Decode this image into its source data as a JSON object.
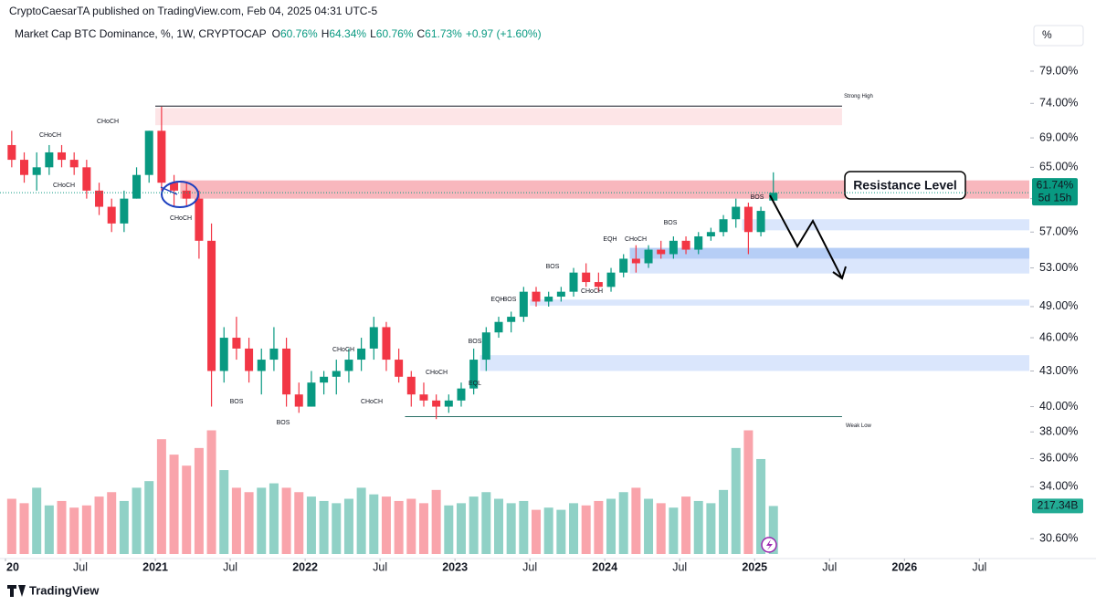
{
  "header": {
    "publisher": "CryptoCaesarTA published on TradingView.com, Feb 04, 2025 04:31 UTC-5",
    "footer": "TradingView",
    "scale_button": "%"
  },
  "chart_data": {
    "type": "candlestick",
    "title": "Market Cap BTC Dominance, %, 1W, CRYPTOCAP",
    "ohlc": [
      {
        "key": "O",
        "label": "60.76%"
      },
      {
        "key": "H",
        "label": "64.34%"
      },
      {
        "key": "L",
        "label": "60.76%"
      },
      {
        "key": "C",
        "label": "61.73%"
      }
    ],
    "change": "+0.97 (+1.60%)",
    "x": [
      "2020-01",
      "2020-02",
      "2020-03",
      "2020-04",
      "2020-05",
      "2020-06",
      "2020-07",
      "2020-08",
      "2020-09",
      "2020-10",
      "2020-11",
      "2020-12",
      "2021-01",
      "2021-02",
      "2021-03",
      "2021-04",
      "2021-05",
      "2021-06",
      "2021-07",
      "2021-08",
      "2021-09",
      "2021-10",
      "2021-11",
      "2021-12",
      "2022-01",
      "2022-02",
      "2022-03",
      "2022-04",
      "2022-05",
      "2022-06",
      "2022-07",
      "2022-08",
      "2022-09",
      "2022-10",
      "2022-11",
      "2022-12",
      "2023-01",
      "2023-02",
      "2023-03",
      "2023-04",
      "2023-05",
      "2023-06",
      "2023-07",
      "2023-08",
      "2023-09",
      "2023-10",
      "2023-11",
      "2023-12",
      "2024-01",
      "2024-02",
      "2024-03",
      "2024-04",
      "2024-05",
      "2024-06",
      "2024-07",
      "2024-08",
      "2024-09",
      "2024-10",
      "2024-11",
      "2024-12",
      "2025-01",
      "2025-02"
    ],
    "open": [
      68,
      66,
      64,
      65,
      67,
      66,
      65,
      62,
      60,
      58,
      61,
      64,
      70,
      63,
      62,
      61,
      56,
      43,
      46,
      45,
      43,
      44,
      45,
      41,
      40,
      42,
      42.5,
      43,
      44,
      45,
      47,
      44,
      42.5,
      41,
      40.5,
      40,
      40.5,
      41.5,
      44,
      46.5,
      47.5,
      48,
      50.5,
      49.5,
      50,
      50.5,
      52.5,
      51.5,
      51,
      52.5,
      54,
      53.5,
      55,
      54.5,
      56,
      55,
      56.5,
      57,
      58.5,
      60,
      57,
      60.76
    ],
    "high": [
      70,
      67,
      67,
      68,
      68,
      67,
      66,
      63,
      61,
      62,
      65,
      70,
      73.5,
      64,
      63,
      62,
      58,
      47,
      48,
      46,
      45,
      47,
      46,
      42,
      43,
      43,
      44,
      45,
      46,
      48,
      47.5,
      45,
      43,
      42,
      41,
      41,
      42,
      45,
      47,
      48,
      48.5,
      51,
      51,
      50.5,
      51,
      53,
      53.5,
      52.5,
      53,
      54.5,
      55.5,
      55.5,
      56,
      56.5,
      56.5,
      57,
      57.5,
      59,
      61,
      60.5,
      60,
      64.34
    ],
    "low": [
      65,
      63,
      62,
      64,
      65,
      64,
      61,
      59,
      57,
      57,
      61,
      63,
      62,
      60,
      60,
      54,
      40,
      42,
      44,
      42,
      41,
      43,
      40,
      39.5,
      40,
      41,
      41,
      42,
      43,
      44,
      43,
      42,
      40,
      40,
      39,
      39.5,
      40,
      41,
      43,
      46,
      46.5,
      47.5,
      49,
      49,
      49.5,
      50,
      51,
      50.5,
      50.5,
      52,
      52.5,
      53,
      54,
      54,
      54.5,
      54.5,
      56,
      56.5,
      57.5,
      54.5,
      56.5,
      60.76
    ],
    "close": [
      66,
      64,
      65,
      67,
      66,
      65,
      62,
      60,
      58,
      61,
      64,
      70,
      63,
      62,
      61,
      56,
      43,
      46,
      45,
      43,
      44,
      45,
      41,
      40,
      42,
      42.5,
      43,
      44,
      45,
      47,
      44,
      42.5,
      41,
      40.5,
      40,
      40.5,
      41.5,
      44,
      46.5,
      47.5,
      48,
      50.5,
      49.5,
      50,
      50.5,
      52.5,
      51.5,
      51,
      52.5,
      54,
      53.5,
      55,
      54.5,
      56,
      55,
      56.5,
      57,
      58.5,
      60,
      57,
      59.5,
      61.73
    ],
    "volume": [
      250,
      230,
      300,
      220,
      240,
      210,
      220,
      260,
      280,
      240,
      300,
      330,
      520,
      450,
      400,
      480,
      560,
      380,
      300,
      280,
      300,
      320,
      300,
      280,
      260,
      240,
      230,
      250,
      300,
      270,
      260,
      240,
      250,
      230,
      290,
      220,
      230,
      260,
      280,
      250,
      230,
      240,
      200,
      210,
      200,
      230,
      220,
      240,
      250,
      280,
      300,
      250,
      230,
      210,
      260,
      240,
      230,
      290,
      480,
      560,
      430,
      217.34
    ],
    "volume_label": "217.34B",
    "volume_lim": [
      0,
      620
    ],
    "last_price": 61.74,
    "last_price_label": "61.74%",
    "countdown": "5d 15h",
    "up_color": "#089981",
    "down_color": "#f23645",
    "log_scale": true,
    "ylim": [
      29.5,
      83.2
    ],
    "yticks": [
      {
        "value": 79,
        "label": "79.00%"
      },
      {
        "value": 74,
        "label": "74.00%"
      },
      {
        "value": 69,
        "label": "69.00%"
      },
      {
        "value": 65,
        "label": "65.00%"
      },
      {
        "value": 61,
        "label": "61.00%"
      },
      {
        "value": 57,
        "label": "57.00%"
      },
      {
        "value": 53,
        "label": "53.00%"
      },
      {
        "value": 49,
        "label": "49.00%"
      },
      {
        "value": 46,
        "label": "46.00%"
      },
      {
        "value": 43,
        "label": "43.00%"
      },
      {
        "value": 40,
        "label": "40.00%"
      },
      {
        "value": 38,
        "label": "38.00%"
      },
      {
        "value": 36,
        "label": "36.00%"
      },
      {
        "value": 34,
        "label": "34.00%"
      },
      {
        "value": 30.6,
        "label": "30.60%"
      }
    ],
    "xlim": [
      "2020-01",
      "2026-11"
    ],
    "xticks": [
      {
        "value": "2020-01",
        "label": "20"
      },
      {
        "value": "2020-07",
        "label": "Jul"
      },
      {
        "value": "2021-01",
        "label": "2021"
      },
      {
        "value": "2021-07",
        "label": "Jul"
      },
      {
        "value": "2022-01",
        "label": "2022"
      },
      {
        "value": "2022-07",
        "label": "Jul"
      },
      {
        "value": "2023-01",
        "label": "2023"
      },
      {
        "value": "2023-07",
        "label": "Jul"
      },
      {
        "value": "2024-01",
        "label": "2024"
      },
      {
        "value": "2024-07",
        "label": "Jul"
      },
      {
        "value": "2025-01",
        "label": "2025"
      },
      {
        "value": "2025-07",
        "label": "Jul"
      },
      {
        "value": "2026-01",
        "label": "2026"
      },
      {
        "value": "2026-07",
        "label": "Jul"
      }
    ],
    "zones": [
      {
        "low": 70.8,
        "high": 73.3,
        "start": "2021-01",
        "end": "2025-08",
        "color": "#fde0e3"
      },
      {
        "low": 61.0,
        "high": 63.3,
        "start": "2021-03",
        "end": "2026-11",
        "color": "#f7aab1"
      },
      {
        "low": 57.2,
        "high": 58.5,
        "start": "2024-12",
        "end": "2026-11",
        "color": "#d3e2fb"
      },
      {
        "low": 54.0,
        "high": 55.2,
        "start": "2024-03",
        "end": "2026-11",
        "color": "#a9c6f5"
      },
      {
        "low": 52.4,
        "high": 54.0,
        "start": "2024-03",
        "end": "2026-11",
        "color": "#d3e2fb"
      },
      {
        "low": 49.1,
        "high": 49.7,
        "start": "2023-07",
        "end": "2026-11",
        "color": "#d3e2fb"
      },
      {
        "low": 43.0,
        "high": 44.4,
        "start": "2023-03",
        "end": "2026-11",
        "color": "#d3e2fb"
      }
    ],
    "strong_high": {
      "label": "Strong High",
      "value": 73.6,
      "start": "2021-01",
      "end": "2025-08"
    },
    "weak_low": {
      "label": "Weak Low",
      "value": 39.2,
      "start": "2022-09",
      "end": "2025-08"
    },
    "callout": "Resistance Level",
    "annotations": [
      "CHoCH",
      "CHoCH",
      "CHoCH",
      "CHoCH",
      "BOS",
      "BOS",
      "CHoCH",
      "CHoCH",
      "CHoCH",
      "BOS",
      "EQL",
      "EQH",
      "BOS",
      "BOS",
      "CHoCH",
      "EQH",
      "CHoCH",
      "BOS",
      "BOS"
    ]
  }
}
